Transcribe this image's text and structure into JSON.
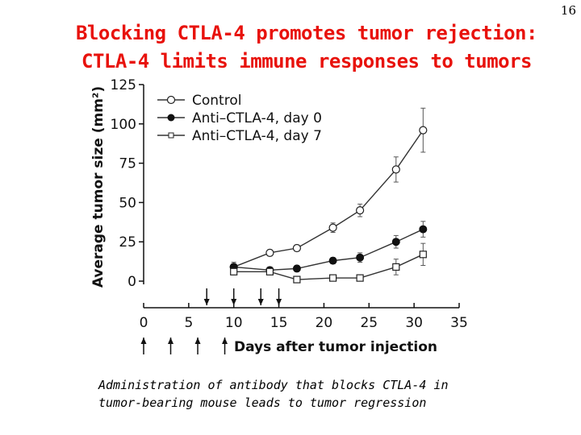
{
  "slide_number": "16",
  "title": {
    "line1": "Blocking CTLA-4 promotes tumor rejection:",
    "line2": "CTLA-4 limits immune responses to tumors"
  },
  "caption": {
    "line1": "Administration of antibody that blocks CTLA-4 in",
    "line2": "tumor-bearing mouse leads to tumor regression"
  },
  "chart_data": {
    "type": "line",
    "xlabel": "Days after tumor injection",
    "ylabel": "Average tumor size (mm²)",
    "xlim": [
      0,
      35
    ],
    "ylim": [
      0,
      125
    ],
    "x_ticks": [
      0,
      5,
      10,
      15,
      20,
      25,
      30,
      35
    ],
    "y_ticks": [
      0,
      25,
      50,
      75,
      100,
      125
    ],
    "grid": false,
    "legend_position": "top-left",
    "series": [
      {
        "name": "Control",
        "marker": "open-circle",
        "points": [
          [
            10,
            9
          ],
          [
            14,
            18
          ],
          [
            17,
            21
          ],
          [
            21,
            34
          ],
          [
            24,
            45
          ],
          [
            28,
            71
          ],
          [
            31,
            96
          ]
        ],
        "errors": [
          2,
          2,
          2,
          3,
          4,
          8,
          14
        ]
      },
      {
        "name": "Anti–CTLA-4, day 0",
        "marker": "filled-circle",
        "points": [
          [
            10,
            9
          ],
          [
            14,
            7
          ],
          [
            17,
            8
          ],
          [
            21,
            13
          ],
          [
            24,
            15
          ],
          [
            28,
            25
          ],
          [
            31,
            33
          ]
        ],
        "errors": [
          3,
          2,
          2,
          2,
          3,
          4,
          5
        ]
      },
      {
        "name": "Anti–CTLA-4, day 7",
        "marker": "open-square",
        "points": [
          [
            10,
            6
          ],
          [
            14,
            6
          ],
          [
            17,
            1
          ],
          [
            21,
            2
          ],
          [
            24,
            2
          ],
          [
            28,
            9
          ],
          [
            31,
            17
          ]
        ],
        "errors": [
          2,
          2,
          1,
          2,
          2,
          5,
          7
        ]
      }
    ],
    "treatment_arrows": {
      "day_7_group_above_axis": [
        7,
        10,
        13,
        15
      ],
      "day_0_group_below_axis": [
        0,
        3,
        6,
        9
      ]
    }
  }
}
